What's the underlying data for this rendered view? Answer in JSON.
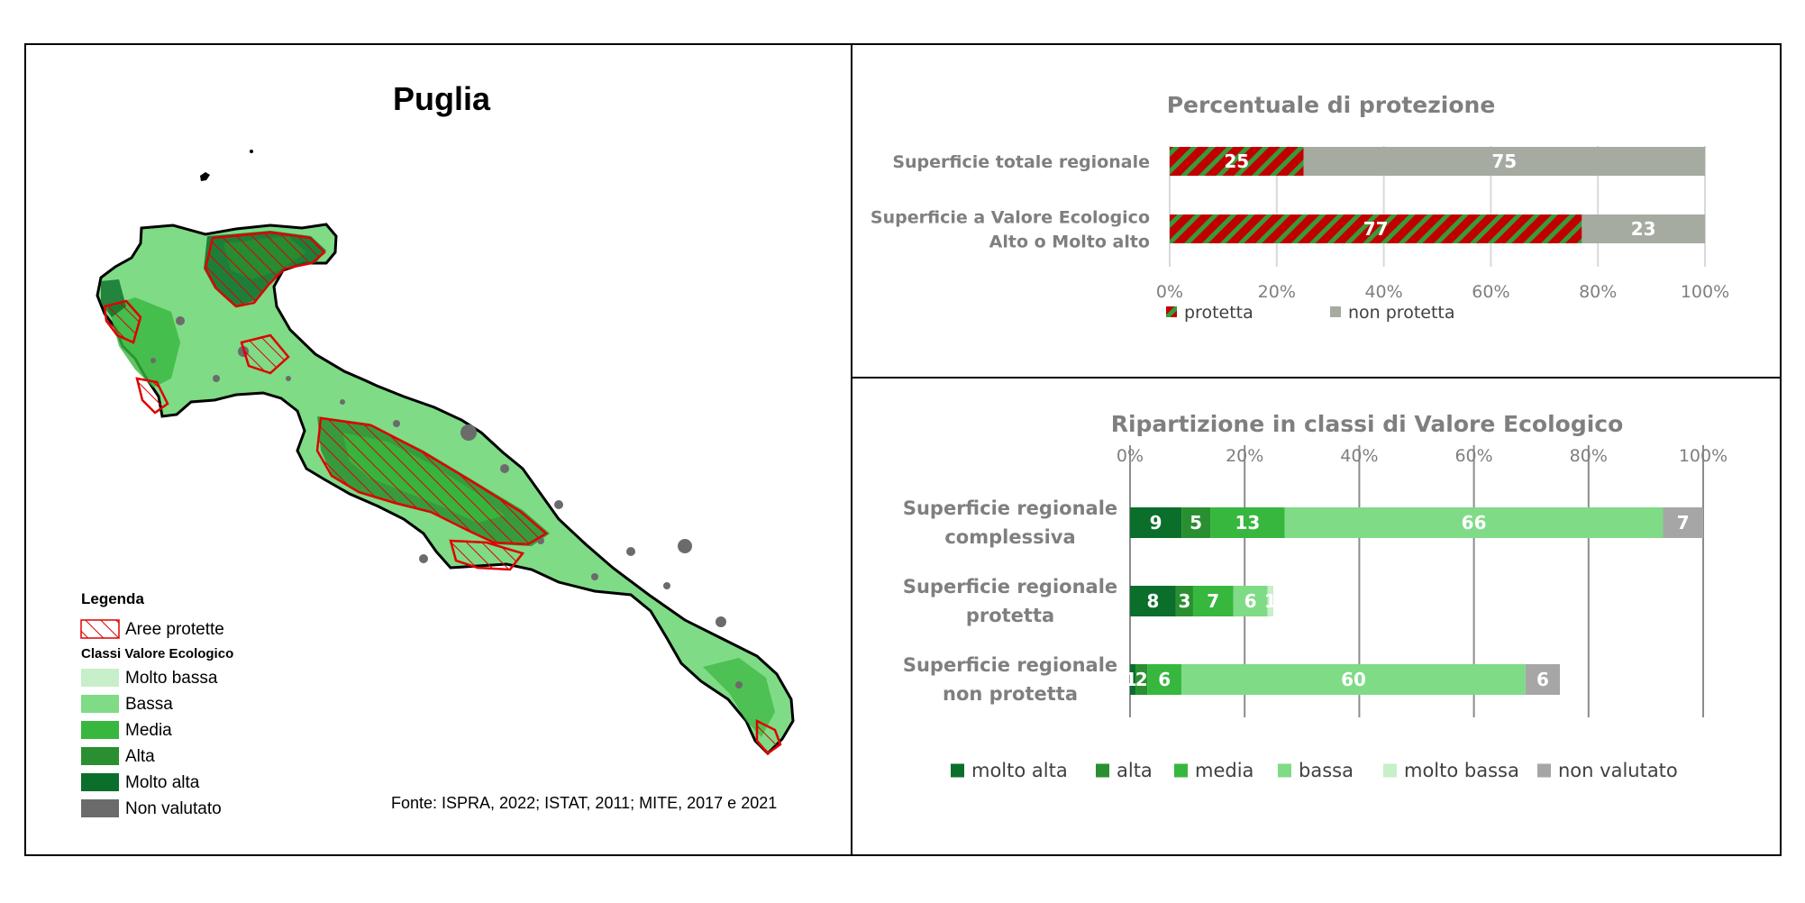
{
  "map": {
    "title": "Puglia",
    "legend_title": "Legenda",
    "protected_label": "Aree protette",
    "classes_title": "Classi Valore Ecologico",
    "classes": [
      {
        "label": "Molto bassa",
        "color": "#c7efc9"
      },
      {
        "label": "Bassa",
        "color": "#7fdb86"
      },
      {
        "label": "Media",
        "color": "#37b73e"
      },
      {
        "label": "Alta",
        "color": "#2a8f30"
      },
      {
        "label": "Molto alta",
        "color": "#0b6e2b"
      },
      {
        "label": "Non valutato",
        "color": "#6b6b6b"
      }
    ],
    "protected_color": "#e00000",
    "source": "Fonte: ISPRA, 2022; ISTAT, 2011; MITE, 2017 e 2021"
  },
  "chart_data": [
    {
      "type": "bar",
      "orientation": "horizontal",
      "stacked": true,
      "title": "Percentuale di protezione",
      "categories": [
        "Superficie totale regionale",
        "Superficie a Valore Ecologico Alto o Molto alto"
      ],
      "category_lines": [
        [
          "Superficie totale regionale"
        ],
        [
          "Superficie a Valore Ecologico",
          "Alto o Molto alto"
        ]
      ],
      "series": [
        {
          "name": "protetta",
          "values": [
            25,
            77
          ],
          "color": "#c00000",
          "pattern": "hatch",
          "pattern_color": "#3a9a3a"
        },
        {
          "name": "non protetta",
          "values": [
            75,
            23
          ],
          "color": "#a5aba0"
        }
      ],
      "xlim": [
        0,
        100
      ],
      "xticks": [
        "0%",
        "20%",
        "40%",
        "60%",
        "80%",
        "100%"
      ],
      "grid": true,
      "legend": "bottom"
    },
    {
      "type": "bar",
      "orientation": "horizontal",
      "stacked": true,
      "title": "Ripartizione in classi di Valore Ecologico",
      "categories": [
        "Superficie regionale complessiva",
        "Superficie regionale protetta",
        "Superficie regionale non protetta"
      ],
      "category_lines": [
        [
          "Superficie regionale",
          "complessiva"
        ],
        [
          "Superficie regionale",
          "protetta"
        ],
        [
          "Superficie regionale",
          "non protetta"
        ]
      ],
      "series": [
        {
          "name": "molto alta",
          "values": [
            9,
            8,
            1
          ],
          "color": "#0b6e2b"
        },
        {
          "name": "alta",
          "values": [
            5,
            3,
            2
          ],
          "color": "#2a8f30"
        },
        {
          "name": "media",
          "values": [
            13,
            7,
            6
          ],
          "color": "#37b73e"
        },
        {
          "name": "bassa",
          "values": [
            66,
            6,
            60
          ],
          "color": "#7fdb86"
        },
        {
          "name": "molto bassa",
          "values": [
            0,
            1,
            0
          ],
          "color": "#c7efc9"
        },
        {
          "name": "non valutato",
          "values": [
            7,
            0,
            6
          ],
          "color": "#a6a6a6"
        }
      ],
      "xlim": [
        0,
        100
      ],
      "xticks": [
        "0%",
        "20%",
        "40%",
        "60%",
        "80%",
        "100%"
      ],
      "grid": true,
      "legend": "bottom"
    }
  ]
}
